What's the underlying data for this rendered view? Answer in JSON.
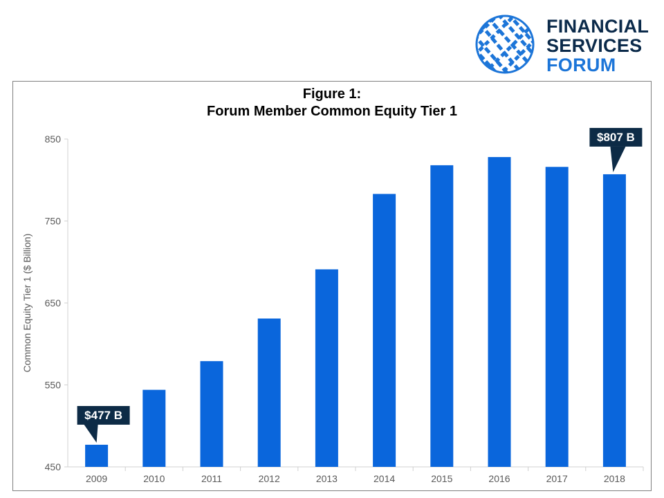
{
  "brand": {
    "line1": "FINANCIAL",
    "line2": "SERVICES",
    "line3": "FORUM",
    "color_dark": "#0b2a4a",
    "color_blue": "#1c75d8"
  },
  "chart_data": {
    "type": "bar",
    "title": "Figure 1:",
    "subtitle": "Forum Member Common Equity Tier 1",
    "xlabel": "",
    "ylabel": "Common Equity Tier 1 ($ Billion)",
    "categories": [
      "2009",
      "2010",
      "2011",
      "2012",
      "2013",
      "2014",
      "2015",
      "2016",
      "2017",
      "2018"
    ],
    "values": [
      477,
      544,
      579,
      631,
      691,
      783,
      818,
      828,
      816,
      807
    ],
    "ylim": [
      450,
      850
    ],
    "yticks": [
      450,
      550,
      650,
      750,
      850
    ],
    "grid": false,
    "bar_color": "#0a66dc",
    "annotations": [
      {
        "category": "2009",
        "label": "$477 B"
      },
      {
        "category": "2018",
        "label": "$807 B"
      }
    ],
    "annotation_color": "#0d2b46"
  }
}
